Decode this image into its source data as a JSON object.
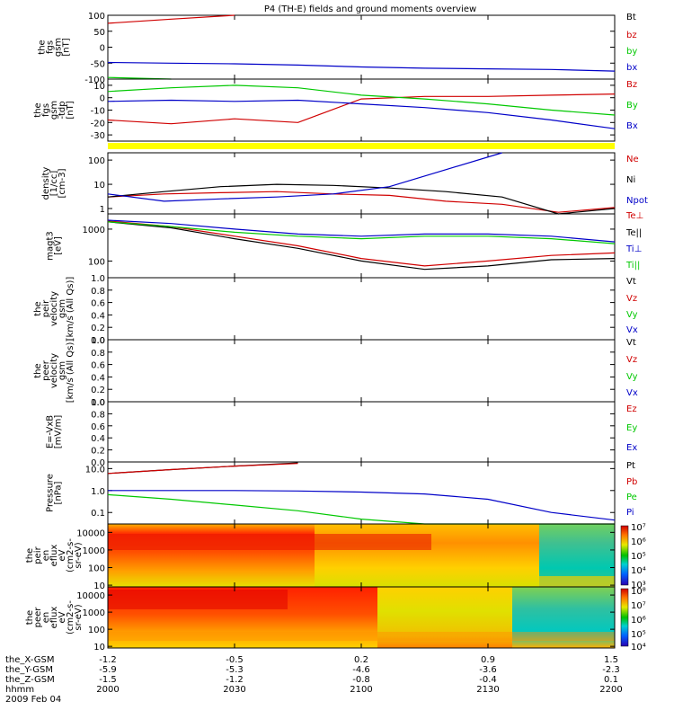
{
  "title": "P4 (TH-E) fields and ground moments overview",
  "date": "2009 Feb 04",
  "colors": {
    "black": "#000000",
    "red": "#d00000",
    "green": "#00c800",
    "blue": "#0000c8",
    "yellow": "#ffff00"
  },
  "x_axis": {
    "ticks": [
      "2000",
      "2030",
      "2100",
      "2130",
      "2200"
    ],
    "rows": [
      {
        "label": "the_X-GSM",
        "values": [
          "-1.2",
          "-0.5",
          "0.2",
          "0.9",
          "1.5"
        ]
      },
      {
        "label": "the_Y-GSM",
        "values": [
          "-5.9",
          "-5.3",
          "-4.6",
          "-3.6",
          "-2.3"
        ]
      },
      {
        "label": "the_Z-GSM",
        "values": [
          "-1.5",
          "-1.2",
          "-0.8",
          "-0.4",
          "0.1"
        ]
      },
      {
        "label": "hhmm",
        "values": [
          "2000",
          "2030",
          "2100",
          "2130",
          "2200"
        ]
      }
    ]
  },
  "panels": [
    {
      "ylabel": [
        "the",
        "fgs",
        "gsm",
        "[nT]"
      ],
      "ticks": [
        "100",
        "50",
        "0",
        "-50",
        "-100"
      ],
      "legend": [
        {
          "text": "Bt",
          "color": "#000000"
        },
        {
          "text": "bz",
          "color": "#d00000"
        },
        {
          "text": "by",
          "color": "#00c800"
        },
        {
          "text": "bx",
          "color": "#0000c8"
        }
      ]
    },
    {
      "ylabel": [
        "the",
        "fgs",
        "gsm",
        "-tdp",
        "[nT]"
      ],
      "ticks": [
        "10",
        "0",
        "-10",
        "-20",
        "-30"
      ],
      "legend": [
        {
          "text": "Bz",
          "color": "#d00000"
        },
        {
          "text": "By",
          "color": "#00c800"
        },
        {
          "text": "Bx",
          "color": "#0000c8"
        }
      ]
    },
    {
      "ylabel": [
        "density",
        "[1/cc]",
        "[cm-3]"
      ],
      "ticks": [
        "100",
        "10",
        "1"
      ],
      "legend": [
        {
          "text": "Ne",
          "color": "#d00000"
        },
        {
          "text": "Ni",
          "color": "#000000"
        },
        {
          "text": "Npot",
          "color": "#0000c8"
        }
      ]
    },
    {
      "ylabel": [
        "magt3",
        "[eV]"
      ],
      "ticks": [
        "1000",
        "100"
      ],
      "legend": [
        {
          "text": "Te⊥",
          "color": "#d00000"
        },
        {
          "text": "Te||",
          "color": "#000000"
        },
        {
          "text": "Ti⊥",
          "color": "#0000c8"
        },
        {
          "text": "Ti||",
          "color": "#00c800"
        }
      ]
    },
    {
      "ylabel": [
        "the",
        "peir",
        "velocity",
        "gsm",
        "[km/s (All Qs)]"
      ],
      "ticks": [
        "1.0",
        "0.8",
        "0.6",
        "0.4",
        "0.2",
        "0.0"
      ],
      "legend": [
        {
          "text": "Vt",
          "color": "#000000"
        },
        {
          "text": "Vz",
          "color": "#d00000"
        },
        {
          "text": "Vy",
          "color": "#00c800"
        },
        {
          "text": "Vx",
          "color": "#0000c8"
        }
      ]
    },
    {
      "ylabel": [
        "the",
        "peer",
        "velocity",
        "gsm",
        "[km/s (All Qs)]"
      ],
      "ticks": [
        "1.0",
        "0.8",
        "0.6",
        "0.4",
        "0.2",
        "0.0"
      ],
      "legend": [
        {
          "text": "Vt",
          "color": "#000000"
        },
        {
          "text": "Vz",
          "color": "#d00000"
        },
        {
          "text": "Vy",
          "color": "#00c800"
        },
        {
          "text": "Vx",
          "color": "#0000c8"
        }
      ]
    },
    {
      "ylabel": [
        "E=-VxB",
        "[mV/m]"
      ],
      "ticks": [
        "1.0",
        "0.8",
        "0.6",
        "0.4",
        "0.2",
        "0.0"
      ],
      "legend": [
        {
          "text": "Ez",
          "color": "#d00000"
        },
        {
          "text": "Ey",
          "color": "#00c800"
        },
        {
          "text": "Ex",
          "color": "#0000c8"
        }
      ]
    },
    {
      "ylabel": [
        "Pressure",
        "[nPa]"
      ],
      "ticks": [
        "10.0",
        "1.0",
        "0.1"
      ],
      "legend": [
        {
          "text": "Pt",
          "color": "#000000"
        },
        {
          "text": "Pb",
          "color": "#d00000"
        },
        {
          "text": "Pe",
          "color": "#00c800"
        },
        {
          "text": "Pi",
          "color": "#0000c8"
        }
      ]
    },
    {
      "ylabel": [
        "the",
        "peir",
        "en",
        "eflux",
        "eV",
        "(cm2-s-",
        "sr-eV)"
      ],
      "ticks": [
        "10000",
        "1000",
        "100",
        "10"
      ],
      "colorbar": [
        "10⁷",
        "10⁶",
        "10⁵",
        "10⁴",
        "10³"
      ]
    },
    {
      "ylabel": [
        "the",
        "peer",
        "en",
        "eflux",
        "eV",
        "(cm2-s-",
        "sr-eV)"
      ],
      "ticks": [
        "10000",
        "1000",
        "100",
        "10"
      ],
      "colorbar": [
        "10⁸",
        "10⁷",
        "10⁶",
        "10⁵",
        "10⁴"
      ]
    }
  ],
  "chart_data": [
    {
      "type": "line",
      "x": [
        "2000",
        "2015",
        "2030",
        "2045",
        "2100",
        "2115",
        "2130",
        "2145",
        "2200"
      ],
      "ylim": [
        -100,
        100
      ],
      "series": [
        {
          "name": "bz",
          "color": "#d00000",
          "values": [
            75,
            88,
            100,
            null,
            null,
            null,
            null,
            null,
            null
          ]
        },
        {
          "name": "by",
          "color": "#00c800",
          "values": [
            -95,
            -102,
            null,
            null,
            null,
            null,
            null,
            null,
            null
          ]
        },
        {
          "name": "bx",
          "color": "#0000c8",
          "values": [
            -48,
            -50,
            -52,
            -56,
            -62,
            -66,
            -68,
            -70,
            -75
          ]
        }
      ]
    },
    {
      "type": "line",
      "x": [
        "2000",
        "2015",
        "2030",
        "2045",
        "2100",
        "2115",
        "2130",
        "2145",
        "2200"
      ],
      "ylim": [
        -35,
        15
      ],
      "series": [
        {
          "name": "Bz",
          "color": "#d00000",
          "values": [
            -18,
            -21,
            -17,
            -20,
            -1,
            1,
            1,
            2,
            3
          ]
        },
        {
          "name": "By",
          "color": "#00c800",
          "values": [
            5,
            8,
            10,
            8,
            2,
            -1,
            -5,
            -10,
            -14
          ]
        },
        {
          "name": "Bx",
          "color": "#0000c8",
          "values": [
            -3,
            -2,
            -3,
            -2,
            -5,
            -8,
            -12,
            -18,
            -25
          ]
        }
      ]
    },
    {
      "type": "line",
      "x": [
        "2000",
        "2015",
        "2030",
        "2045",
        "2100",
        "2115",
        "2130",
        "2145",
        "2150",
        "2200"
      ],
      "ylim": [
        0.6,
        200
      ],
      "log": true,
      "series": [
        {
          "name": "Ne",
          "color": "#d00000",
          "values": [
            3,
            4,
            4.5,
            5,
            4,
            3.5,
            2,
            1.5,
            0.7,
            1.1
          ]
        },
        {
          "name": "Ni",
          "color": "#000000",
          "values": [
            3,
            5,
            8,
            10,
            9,
            7,
            5,
            3,
            0.55,
            1.0
          ]
        },
        {
          "name": "Npot",
          "color": "#0000c8",
          "values": [
            4,
            2,
            2.5,
            3,
            4,
            8,
            40,
            200,
            null,
            null
          ]
        }
      ]
    },
    {
      "type": "line",
      "x": [
        "2000",
        "2015",
        "2030",
        "2045",
        "2100",
        "2115",
        "2130",
        "2145",
        "2200"
      ],
      "ylim": [
        30,
        3000
      ],
      "log": true,
      "series": [
        {
          "name": "Te⊥",
          "color": "#d00000",
          "values": [
            1800,
            1200,
            600,
            300,
            120,
            70,
            100,
            150,
            180
          ]
        },
        {
          "name": "Te||",
          "color": "#000000",
          "values": [
            1700,
            1100,
            500,
            250,
            100,
            55,
            70,
            110,
            120
          ]
        },
        {
          "name": "Ti⊥",
          "color": "#0000c8",
          "values": [
            1900,
            1500,
            1000,
            700,
            600,
            700,
            700,
            600,
            400
          ]
        },
        {
          "name": "Ti||",
          "color": "#00c800",
          "values": [
            1700,
            1200,
            800,
            600,
            500,
            600,
            600,
            500,
            350
          ]
        }
      ]
    },
    {
      "type": "line",
      "ylim": [
        0,
        1
      ],
      "series": []
    },
    {
      "type": "line",
      "ylim": [
        0,
        1
      ],
      "series": []
    },
    {
      "type": "line",
      "ylim": [
        0,
        1
      ],
      "series": []
    },
    {
      "type": "line",
      "x": [
        "2000",
        "2015",
        "2030",
        "2045",
        "2100",
        "2115",
        "2130",
        "2145",
        "2200"
      ],
      "ylim": [
        0.03,
        20
      ],
      "log": true,
      "series": [
        {
          "name": "Pt",
          "color": "#000000",
          "values": [
            6,
            9,
            13,
            18,
            null,
            null,
            null,
            null,
            null
          ]
        },
        {
          "name": "Pb",
          "color": "#d00000",
          "values": [
            6,
            9,
            13,
            17,
            null,
            null,
            null,
            null,
            null
          ]
        },
        {
          "name": "Pe",
          "color": "#00c800",
          "values": [
            0.65,
            0.4,
            0.22,
            0.12,
            0.05,
            0.028,
            0.025,
            0.025,
            0.025
          ]
        },
        {
          "name": "Pi",
          "color": "#0000c8",
          "values": [
            1.0,
            1.0,
            1.0,
            0.95,
            0.85,
            0.7,
            0.4,
            0.1,
            0.045
          ]
        }
      ]
    },
    {
      "type": "heatmap",
      "ylim": [
        8,
        30000
      ],
      "log": true,
      "clim": [
        1000,
        10000000
      ]
    },
    {
      "type": "heatmap",
      "ylim": [
        8,
        30000
      ],
      "log": true,
      "clim": [
        10000,
        100000000
      ]
    }
  ]
}
